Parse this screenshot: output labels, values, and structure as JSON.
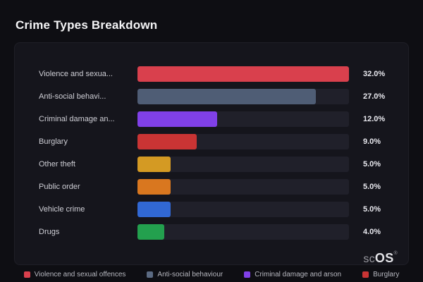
{
  "header": {
    "title": "Crime Types Breakdown"
  },
  "brand": {
    "prefix": "sc",
    "suffix": "OS",
    "reg": "®"
  },
  "chart_data": {
    "type": "bar",
    "orientation": "horizontal",
    "title": "Crime Types Breakdown",
    "xlabel": "",
    "ylabel": "",
    "xlim": [
      0,
      32
    ],
    "grid": false,
    "legend_position": "bottom",
    "rows": [
      {
        "label": "Violence and sexua...",
        "value": 32.0,
        "value_label": "32.0%",
        "color": "#d9404d"
      },
      {
        "label": "Anti-social behavi...",
        "value": 27.0,
        "value_label": "27.0%",
        "color": "#4f5d75"
      },
      {
        "label": "Criminal damage an...",
        "value": 12.0,
        "value_label": "12.0%",
        "color": "#8040e8"
      },
      {
        "label": "Burglary",
        "value": 9.0,
        "value_label": "9.0%",
        "color": "#c93434"
      },
      {
        "label": "Other theft",
        "value": 5.0,
        "value_label": "5.0%",
        "color": "#d49a23"
      },
      {
        "label": "Public order",
        "value": 5.0,
        "value_label": "5.0%",
        "color": "#d9771f"
      },
      {
        "label": "Vehicle crime",
        "value": 5.0,
        "value_label": "5.0%",
        "color": "#3168d4"
      },
      {
        "label": "Drugs",
        "value": 4.0,
        "value_label": "4.0%",
        "color": "#23a04e"
      }
    ],
    "legend": [
      {
        "label": "Violence and sexual offences",
        "color": "#d9404d"
      },
      {
        "label": "Anti-social behaviour",
        "color": "#5b6a82"
      },
      {
        "label": "Criminal damage and arson",
        "color": "#8040e8"
      },
      {
        "label": "Burglary",
        "color": "#c93434"
      }
    ],
    "track_color": "#20202a"
  }
}
